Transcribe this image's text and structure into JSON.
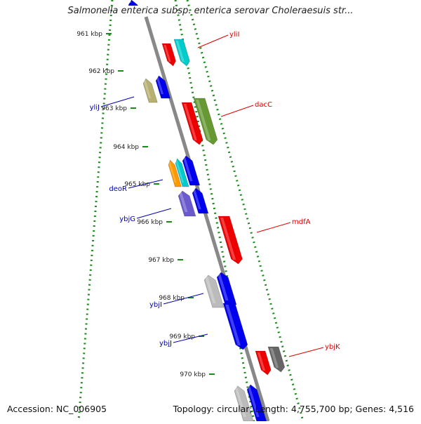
{
  "title": "Salmonella enterica subsp. enterica serovar Choleraesuis str...",
  "footer": {
    "accession": "Accession: NC_006905",
    "summary": "Topology: circular; Length: 4,755,700 bp; Genes: 4,516"
  },
  "colors": {
    "forward_label": "#e00000",
    "reverse_label": "#0000b0",
    "tick": "#1a8a1a",
    "backbone": "#888888"
  },
  "ruler": {
    "labels": [
      "961 kbp",
      "962 kbp",
      "963 kbp",
      "964 kbp",
      "965 kbp",
      "966 kbp",
      "967 kbp",
      "968 kbp",
      "969 kbp",
      "970 kbp"
    ]
  },
  "forward_labels": [
    {
      "name": "yliI",
      "text": "yliI"
    },
    {
      "name": "dacC",
      "text": "dacC"
    },
    {
      "name": "mdfA",
      "text": "mdfA"
    },
    {
      "name": "ybjK",
      "text": "ybjK"
    }
  ],
  "reverse_labels": [
    {
      "name": "yliJ",
      "text": "yliJ"
    },
    {
      "name": "deoR",
      "text": "deoR"
    },
    {
      "name": "ybjG",
      "text": "ybjG"
    },
    {
      "name": "ybjI",
      "text": "ybjI"
    },
    {
      "name": "ybjJ",
      "text": "ybjJ"
    }
  ]
}
